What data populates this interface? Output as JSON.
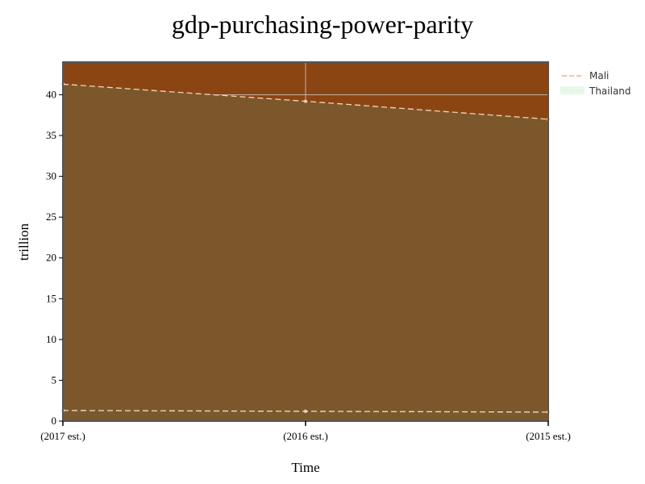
{
  "chart_data": {
    "type": "area",
    "title": "gdp-purchasing-power-parity",
    "xlabel": "Time",
    "ylabel": "trillion",
    "categories": [
      "(2017 est.)",
      "(2016 est.)",
      "(2015 est.)"
    ],
    "ylim": [
      0,
      44
    ],
    "yticks": [
      0,
      5,
      10,
      15,
      20,
      25,
      30,
      35,
      40
    ],
    "grid": true,
    "legend_position": "top-right",
    "series": [
      {
        "name": "Mali",
        "values": [
          1.3,
          1.2,
          1.1
        ],
        "line_color": "#f0e0c8",
        "fill_color": "#7a5a2c",
        "line_dash": "dashed",
        "legend_symbol_color": "#e8a070"
      },
      {
        "name": "Thailand",
        "values": [
          41.3,
          39.2,
          37.0
        ],
        "line_color": "#f5d5b5",
        "fill_color": "#7c572c",
        "line_dash": "dashed",
        "legend_symbol_color": "#dff5df"
      }
    ],
    "plot_background": "#8b4513",
    "plot_border": "#555555"
  }
}
